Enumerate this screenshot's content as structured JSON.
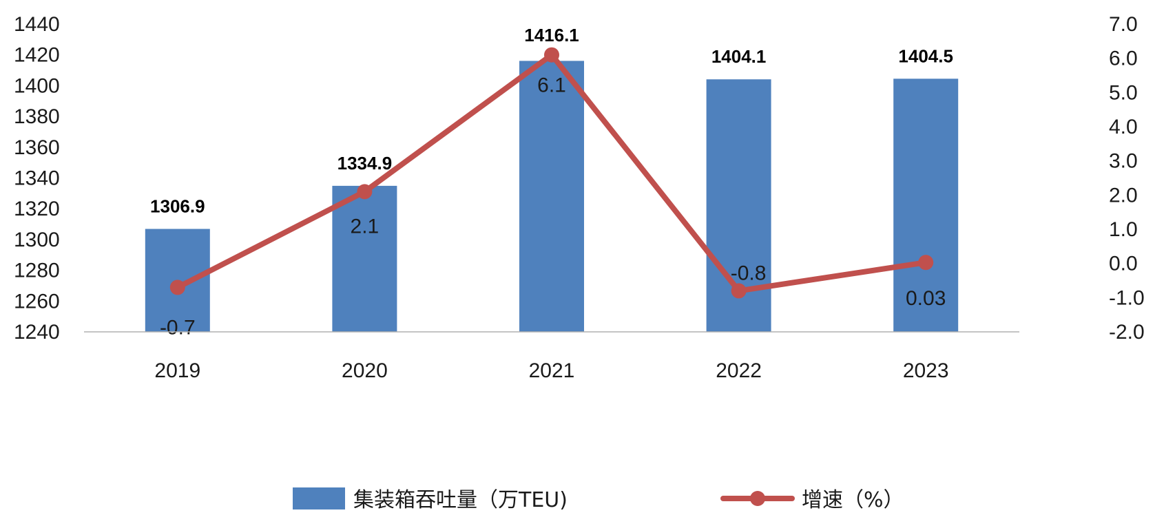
{
  "chart_data": {
    "type": "bar",
    "categories": [
      "2019",
      "2020",
      "2021",
      "2022",
      "2023"
    ],
    "series": [
      {
        "name": "集装箱吞吐量（万TEU)",
        "type": "bar",
        "axis": "left",
        "values": [
          1306.9,
          1334.9,
          1416.1,
          1404.1,
          1404.5
        ],
        "labels": [
          "1306.9",
          "1334.9",
          "1416.1",
          "1404.1",
          "1404.5"
        ],
        "color": "#4f81bd"
      },
      {
        "name": "增速（%）",
        "type": "line",
        "axis": "right",
        "values": [
          -0.7,
          2.1,
          6.1,
          -0.8,
          0.03
        ],
        "labels": [
          "-0.7",
          "2.1",
          "6.1",
          "-0.8",
          "0.03"
        ],
        "color": "#c0504d"
      }
    ],
    "y_left": {
      "min": 1240,
      "max": 1440,
      "ticks": [
        "1240",
        "1260",
        "1280",
        "1300",
        "1320",
        "1340",
        "1360",
        "1380",
        "1400",
        "1420",
        "1440"
      ]
    },
    "y_right": {
      "min": -2.0,
      "max": 7.0,
      "ticks": [
        "-2.0",
        "-1.0",
        "0.0",
        "1.0",
        "2.0",
        "3.0",
        "4.0",
        "5.0",
        "6.0",
        "7.0"
      ]
    },
    "grid": false,
    "legend_position": "bottom"
  }
}
